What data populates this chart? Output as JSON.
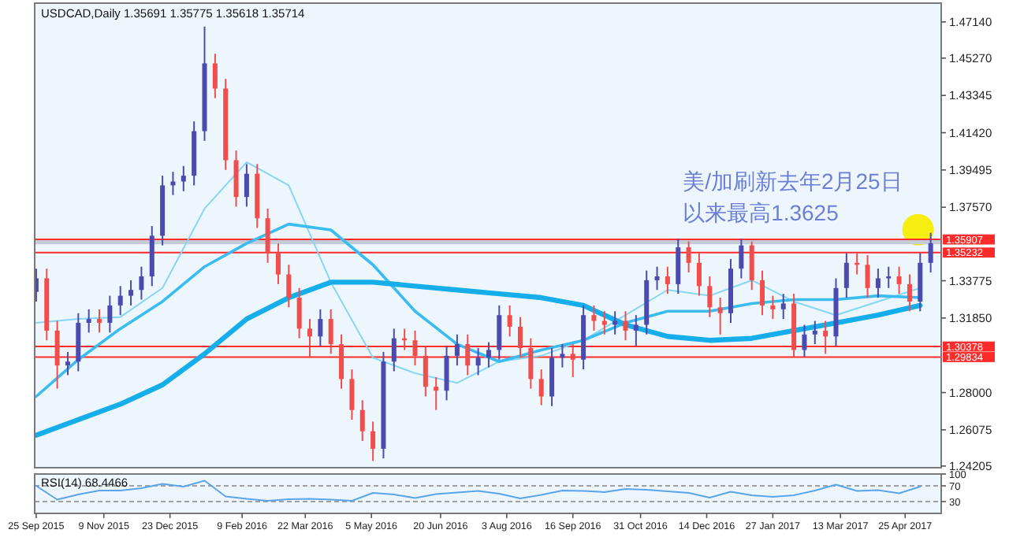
{
  "chart_data": [
    {
      "type": "candlestick",
      "title": "USDCAD,Daily 1.35691 1.35775 1.35618 1.35714",
      "x": [
        "2015-09-25",
        "2015-10-02",
        "2015-10-09",
        "2015-10-16",
        "2015-10-23",
        "2015-10-30",
        "2015-11-06",
        "2015-11-13",
        "2015-11-20",
        "2015-11-27",
        "2015-12-04",
        "2015-12-11",
        "2015-12-18",
        "2015-12-25",
        "2016-01-01",
        "2016-01-08",
        "2016-01-15",
        "2016-01-22",
        "2016-01-29",
        "2016-02-05",
        "2016-02-12",
        "2016-02-19",
        "2016-02-26",
        "2016-03-04",
        "2016-03-11",
        "2016-03-18",
        "2016-03-25",
        "2016-04-01",
        "2016-04-08",
        "2016-04-15",
        "2016-04-22",
        "2016-04-29",
        "2016-05-06",
        "2016-05-13",
        "2016-05-20",
        "2016-05-27",
        "2016-06-03",
        "2016-06-10",
        "2016-06-17",
        "2016-06-24",
        "2016-07-01",
        "2016-07-08",
        "2016-07-15",
        "2016-07-22",
        "2016-07-29",
        "2016-08-05",
        "2016-08-12",
        "2016-08-19",
        "2016-08-26",
        "2016-09-02",
        "2016-09-09",
        "2016-09-16",
        "2016-09-23",
        "2016-09-30",
        "2016-10-07",
        "2016-10-14",
        "2016-10-21",
        "2016-10-28",
        "2016-11-04",
        "2016-11-11",
        "2016-11-18",
        "2016-11-25",
        "2016-12-02",
        "2016-12-09",
        "2016-12-16",
        "2016-12-23",
        "2016-12-30",
        "2017-01-06",
        "2017-01-13",
        "2017-01-20",
        "2017-01-27",
        "2017-02-03",
        "2017-02-10",
        "2017-02-17",
        "2017-02-24",
        "2017-03-03",
        "2017-03-10",
        "2017-03-17",
        "2017-03-24",
        "2017-03-31",
        "2017-04-07",
        "2017-04-14",
        "2017-04-21",
        "2017-04-28",
        "2017-05-05",
        "2017-05-12"
      ],
      "ohlc": [
        [
          1.332,
          1.344,
          1.327,
          1.339
        ],
        [
          1.339,
          1.344,
          1.307,
          1.312
        ],
        [
          1.312,
          1.317,
          1.282,
          1.294
        ],
        [
          1.294,
          1.301,
          1.289,
          1.296
        ],
        [
          1.296,
          1.321,
          1.291,
          1.316
        ],
        [
          1.316,
          1.323,
          1.311,
          1.318
        ],
        [
          1.318,
          1.323,
          1.311,
          1.316
        ],
        [
          1.316,
          1.33,
          1.311,
          1.325
        ],
        [
          1.325,
          1.335,
          1.32,
          1.33
        ],
        [
          1.33,
          1.338,
          1.325,
          1.333
        ],
        [
          1.333,
          1.345,
          1.328,
          1.34
        ],
        [
          1.34,
          1.366,
          1.335,
          1.361
        ],
        [
          1.361,
          1.392,
          1.356,
          1.387
        ],
        [
          1.387,
          1.394,
          1.382,
          1.389
        ],
        [
          1.389,
          1.397,
          1.384,
          1.392
        ],
        [
          1.392,
          1.42,
          1.387,
          1.415
        ],
        [
          1.415,
          1.469,
          1.41,
          1.45
        ],
        [
          1.45,
          1.455,
          1.432,
          1.437
        ],
        [
          1.437,
          1.442,
          1.395,
          1.4
        ],
        [
          1.4,
          1.405,
          1.376,
          1.381
        ],
        [
          1.381,
          1.398,
          1.376,
          1.393
        ],
        [
          1.393,
          1.398,
          1.365,
          1.37
        ],
        [
          1.37,
          1.375,
          1.347,
          1.352
        ],
        [
          1.352,
          1.357,
          1.336,
          1.341
        ],
        [
          1.341,
          1.346,
          1.324,
          1.329
        ],
        [
          1.329,
          1.334,
          1.308,
          1.313
        ],
        [
          1.313,
          1.318,
          1.298,
          1.309
        ],
        [
          1.309,
          1.323,
          1.304,
          1.318
        ],
        [
          1.318,
          1.323,
          1.3,
          1.305
        ],
        [
          1.305,
          1.31,
          1.282,
          1.287
        ],
        [
          1.287,
          1.292,
          1.266,
          1.271
        ],
        [
          1.271,
          1.276,
          1.255,
          1.26
        ],
        [
          1.26,
          1.265,
          1.2447,
          1.251
        ],
        [
          1.251,
          1.301,
          1.246,
          1.296
        ],
        [
          1.296,
          1.313,
          1.291,
          1.308
        ],
        [
          1.308,
          1.313,
          1.302,
          1.307
        ],
        [
          1.307,
          1.312,
          1.294,
          1.299
        ],
        [
          1.299,
          1.304,
          1.278,
          1.283
        ],
        [
          1.283,
          1.288,
          1.271,
          1.281
        ],
        [
          1.281,
          1.304,
          1.276,
          1.299
        ],
        [
          1.299,
          1.31,
          1.294,
          1.305
        ],
        [
          1.305,
          1.31,
          1.289,
          1.294
        ],
        [
          1.294,
          1.303,
          1.289,
          1.298
        ],
        [
          1.298,
          1.306,
          1.293,
          1.302
        ],
        [
          1.302,
          1.325,
          1.297,
          1.32
        ],
        [
          1.32,
          1.325,
          1.309,
          1.314
        ],
        [
          1.314,
          1.319,
          1.298,
          1.303
        ],
        [
          1.303,
          1.308,
          1.282,
          1.287
        ],
        [
          1.287,
          1.292,
          1.2735,
          1.278
        ],
        [
          1.278,
          1.303,
          1.273,
          1.298
        ],
        [
          1.298,
          1.305,
          1.293,
          1.3
        ],
        [
          1.3,
          1.305,
          1.288,
          1.297
        ],
        [
          1.297,
          1.325,
          1.292,
          1.32
        ],
        [
          1.32,
          1.325,
          1.312,
          1.317
        ],
        [
          1.317,
          1.322,
          1.31,
          1.315
        ],
        [
          1.315,
          1.322,
          1.31,
          1.317
        ],
        [
          1.317,
          1.322,
          1.307,
          1.312
        ],
        [
          1.312,
          1.32,
          1.304,
          1.315
        ],
        [
          1.315,
          1.343,
          1.31,
          1.338
        ],
        [
          1.338,
          1.345,
          1.333,
          1.34
        ],
        [
          1.34,
          1.345,
          1.331,
          1.336
        ],
        [
          1.336,
          1.3595,
          1.331,
          1.355
        ],
        [
          1.355,
          1.358,
          1.342,
          1.347
        ],
        [
          1.347,
          1.352,
          1.33,
          1.335
        ],
        [
          1.335,
          1.34,
          1.319,
          1.324
        ],
        [
          1.324,
          1.329,
          1.31,
          1.321
        ],
        [
          1.321,
          1.349,
          1.316,
          1.344
        ],
        [
          1.344,
          1.3595,
          1.339,
          1.356
        ],
        [
          1.356,
          1.358,
          1.333,
          1.338
        ],
        [
          1.338,
          1.343,
          1.32,
          1.325
        ],
        [
          1.325,
          1.33,
          1.318,
          1.323
        ],
        [
          1.323,
          1.331,
          1.318,
          1.326
        ],
        [
          1.326,
          1.331,
          1.2983,
          1.302
        ],
        [
          1.302,
          1.315,
          1.2985,
          1.31
        ],
        [
          1.31,
          1.317,
          1.305,
          1.312
        ],
        [
          1.312,
          1.317,
          1.3,
          1.309
        ],
        [
          1.309,
          1.339,
          1.304,
          1.334
        ],
        [
          1.334,
          1.352,
          1.329,
          1.347
        ],
        [
          1.347,
          1.352,
          1.341,
          1.346
        ],
        [
          1.346,
          1.351,
          1.329,
          1.334
        ],
        [
          1.334,
          1.344,
          1.329,
          1.339
        ],
        [
          1.339,
          1.345,
          1.334,
          1.34
        ],
        [
          1.34,
          1.345,
          1.331,
          1.336
        ],
        [
          1.336,
          1.341,
          1.322,
          1.327
        ],
        [
          1.327,
          1.352,
          1.322,
          1.347
        ],
        [
          1.347,
          1.3625,
          1.342,
          1.35714
        ]
      ],
      "colors": [
        "#4b4baf",
        "#f24d4d",
        "#f24d4d",
        "#4b4baf",
        "#4b4baf",
        "#4b4baf",
        "#f24d4d",
        "#4b4baf",
        "#4b4baf",
        "#4b4baf",
        "#4b4baf",
        "#4b4baf",
        "#4b4baf",
        "#4b4baf",
        "#4b4baf",
        "#4b4baf",
        "#4b4baf",
        "#f24d4d",
        "#f24d4d",
        "#f24d4d",
        "#4b4baf",
        "#f24d4d",
        "#f24d4d",
        "#f24d4d",
        "#f24d4d",
        "#f24d4d",
        "#f24d4d",
        "#4b4baf",
        "#f24d4d",
        "#f24d4d",
        "#f24d4d",
        "#f24d4d",
        "#f24d4d",
        "#4b4baf",
        "#4b4baf",
        "#f24d4d",
        "#f24d4d",
        "#f24d4d",
        "#f24d4d",
        "#4b4baf",
        "#4b4baf",
        "#f24d4d",
        "#4b4baf",
        "#4b4baf",
        "#4b4baf",
        "#f24d4d",
        "#f24d4d",
        "#f24d4d",
        "#f24d4d",
        "#4b4baf",
        "#4b4baf",
        "#f24d4d",
        "#4b4baf",
        "#f24d4d",
        "#f24d4d",
        "#4b4baf",
        "#f24d4d",
        "#4b4baf",
        "#4b4baf",
        "#4b4baf",
        "#f24d4d",
        "#4b4baf",
        "#f24d4d",
        "#f24d4d",
        "#f24d4d",
        "#f24d4d",
        "#4b4baf",
        "#4b4baf",
        "#f24d4d",
        "#f24d4d",
        "#f24d4d",
        "#4b4baf",
        "#f24d4d",
        "#4b4baf",
        "#4b4baf",
        "#f24d4d",
        "#4b4baf",
        "#4b4baf",
        "#f24d4d",
        "#f24d4d",
        "#4b4baf",
        "#4b4baf",
        "#f24d4d",
        "#f24d4d",
        "#4b4baf",
        "#4b4baf"
      ],
      "series": [
        {
          "type": "line",
          "color": "#86d6f5",
          "x": [
            "2015-09-25",
            "2015-10-23",
            "2015-11-20",
            "2015-12-18",
            "2016-01-15",
            "2016-02-12",
            "2016-03-11",
            "2016-04-08",
            "2016-05-06",
            "2016-06-03",
            "2016-07-01",
            "2016-07-29",
            "2016-08-26",
            "2016-09-23",
            "2016-10-21",
            "2016-11-18",
            "2016-12-16",
            "2017-01-13",
            "2017-02-10",
            "2017-03-10",
            "2017-04-07",
            "2017-05-05"
          ],
          "values": [
            1.316,
            1.318,
            1.319,
            1.334,
            1.375,
            1.399,
            1.387,
            1.337,
            1.298,
            1.29,
            1.285,
            1.296,
            1.299,
            1.307,
            1.32,
            1.333,
            1.33,
            1.338,
            1.327,
            1.32,
            1.327,
            1.334
          ]
        },
        {
          "type": "line",
          "color": "#3bbcf0",
          "x": [
            "2015-09-25",
            "2015-10-23",
            "2015-11-20",
            "2015-12-18",
            "2016-01-15",
            "2016-02-12",
            "2016-03-11",
            "2016-04-08",
            "2016-05-06",
            "2016-06-03",
            "2016-07-01",
            "2016-07-29",
            "2016-08-26",
            "2016-09-23",
            "2016-10-21",
            "2016-11-18",
            "2016-12-16",
            "2017-01-13",
            "2017-02-10",
            "2017-03-10",
            "2017-04-07",
            "2017-05-05"
          ],
          "values": [
            1.278,
            1.297,
            1.313,
            1.327,
            1.345,
            1.357,
            1.367,
            1.364,
            1.346,
            1.322,
            1.305,
            1.296,
            1.302,
            1.307,
            1.316,
            1.322,
            1.322,
            1.326,
            1.328,
            1.328,
            1.33,
            1.329
          ]
        },
        {
          "type": "line",
          "color": "#16aeea",
          "x": [
            "2015-09-25",
            "2015-10-23",
            "2015-11-20",
            "2015-12-18",
            "2016-01-15",
            "2016-02-12",
            "2016-03-11",
            "2016-04-08",
            "2016-05-06",
            "2016-06-03",
            "2016-07-01",
            "2016-07-29",
            "2016-08-26",
            "2016-09-23",
            "2016-10-21",
            "2016-11-18",
            "2016-12-16",
            "2017-01-13",
            "2017-02-10",
            "2017-03-10",
            "2017-04-07",
            "2017-05-05"
          ],
          "values": [
            1.258,
            1.266,
            1.274,
            1.284,
            1.3,
            1.318,
            1.329,
            1.337,
            1.337,
            1.335,
            1.333,
            1.331,
            1.329,
            1.325,
            1.315,
            1.309,
            1.307,
            1.308,
            1.312,
            1.316,
            1.32,
            1.325
          ]
        }
      ],
      "xlim": [
        "2015-09-24",
        "2017-05-19"
      ],
      "ylim": [
        1.2412,
        1.4811
      ],
      "yticks": [
        {
          "value": 1.4714,
          "label": "1.47140"
        },
        {
          "value": 1.4527,
          "label": "1.45270"
        },
        {
          "value": 1.43345,
          "label": "1.43345"
        },
        {
          "value": 1.4142,
          "label": "1.41420"
        },
        {
          "value": 1.39495,
          "label": "1.39495"
        },
        {
          "value": 1.3757,
          "label": "1.37570"
        },
        {
          "value": 1.33775,
          "label": "1.33775"
        },
        {
          "value": 1.3185,
          "label": "1.31850"
        },
        {
          "value": 1.28,
          "label": "1.28000"
        },
        {
          "value": 1.26075,
          "label": "1.26075"
        },
        {
          "value": 1.24205,
          "label": "1.24205"
        }
      ],
      "ref_lines": [
        {
          "axis": "y",
          "value": 1.35907,
          "label": "1.35907",
          "color": "#ff2a2a"
        },
        {
          "axis": "y",
          "value": 1.35232,
          "label": "1.35232",
          "color": "#ff2a2a"
        },
        {
          "axis": "y",
          "value": 1.30378,
          "label": "1.30378",
          "color": "#ff2a2a"
        },
        {
          "axis": "y",
          "value": 1.29834,
          "label": "1.29834",
          "color": "#ff2a2a"
        }
      ],
      "bands": [
        {
          "axis": "y",
          "from": 1.3566,
          "to": 1.3591,
          "color": "#c3ccd6"
        }
      ],
      "annotations": [
        {
          "text": "美/加刷新去年2月25日以来最高1.3625",
          "x": "2017-05-12",
          "y": 1.3625
        }
      ],
      "tick_labels": "y"
    },
    {
      "type": "line",
      "title": "RSI(14) 68.4466",
      "x": [
        "2015-09-25",
        "2015-10-09",
        "2015-10-23",
        "2015-11-06",
        "2015-11-20",
        "2015-12-04",
        "2015-12-18",
        "2016-01-01",
        "2016-01-15",
        "2016-01-29",
        "2016-02-12",
        "2016-02-26",
        "2016-03-11",
        "2016-03-25",
        "2016-04-08",
        "2016-04-22",
        "2016-05-06",
        "2016-05-20",
        "2016-06-03",
        "2016-06-17",
        "2016-07-01",
        "2016-07-15",
        "2016-07-29",
        "2016-08-12",
        "2016-08-26",
        "2016-09-09",
        "2016-09-23",
        "2016-10-07",
        "2016-10-21",
        "2016-11-04",
        "2016-11-18",
        "2016-12-02",
        "2016-12-16",
        "2016-12-30",
        "2017-01-13",
        "2017-01-27",
        "2017-02-10",
        "2017-02-24",
        "2017-03-10",
        "2017-03-24",
        "2017-04-07",
        "2017-04-21",
        "2017-05-05"
      ],
      "series": [
        {
          "color": "#5aa5ea",
          "values": [
            70,
            35,
            48,
            58,
            58,
            64,
            75,
            68,
            83,
            43,
            37,
            32,
            36,
            37,
            35,
            32,
            52,
            48,
            39,
            49,
            53,
            57,
            50,
            38,
            47,
            58,
            57,
            54,
            62,
            60,
            56,
            52,
            40,
            55,
            46,
            42,
            46,
            58,
            73,
            57,
            59,
            51,
            68
          ]
        }
      ],
      "xlim": [
        "2015-09-24",
        "2017-05-19"
      ],
      "ylim": [
        0,
        100
      ],
      "yticks": [
        30,
        70,
        100
      ],
      "xticks": [
        {
          "value": "2015-09-25",
          "label": "25 Sep 2015"
        },
        {
          "value": "2015-11-09",
          "label": "9 Nov 2015"
        },
        {
          "value": "2015-12-23",
          "label": "23 Dec 2015"
        },
        {
          "value": "2016-02-09",
          "label": "9 Feb 2016"
        },
        {
          "value": "2016-03-22",
          "label": "22 Mar 2016"
        },
        {
          "value": "2016-05-05",
          "label": "5 May 2016"
        },
        {
          "value": "2016-06-20",
          "label": "20 Jun 2016"
        },
        {
          "value": "2016-08-03",
          "label": "3 Aug 2016"
        },
        {
          "value": "2016-09-16",
          "label": "16 Sep 2016"
        },
        {
          "value": "2016-10-31",
          "label": "31 Oct 2016"
        },
        {
          "value": "2016-12-14",
          "label": "14 Dec 2016"
        },
        {
          "value": "2017-01-27",
          "label": "27 Jan 2017"
        },
        {
          "value": "2017-03-13",
          "label": "13 Mar 2017"
        },
        {
          "value": "2017-04-25",
          "label": "25 Apr 2017"
        }
      ],
      "ref_lines": [
        {
          "axis": "y",
          "value": 30,
          "color": "#a0a0a0",
          "line_style": "dashed"
        },
        {
          "axis": "y",
          "value": 70,
          "color": "#a0a0a0",
          "line_style": "dashed"
        }
      ]
    }
  ]
}
